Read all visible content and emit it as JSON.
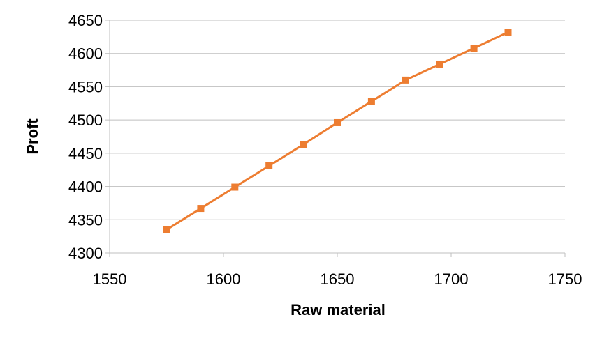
{
  "chart_data": {
    "type": "line",
    "title": "",
    "xlabel": "Raw material",
    "ylabel": "Proft",
    "xlim": [
      1550,
      1750
    ],
    "ylim": [
      4300,
      4650
    ],
    "xticks": [
      1550,
      1600,
      1650,
      1700,
      1750
    ],
    "yticks": [
      4300,
      4350,
      4400,
      4450,
      4500,
      4550,
      4600,
      4650
    ],
    "grid": "horizontal",
    "legend": "none",
    "series": [
      {
        "color": "#ED7D31",
        "marker": "square",
        "x": [
          1575,
          1590,
          1605,
          1620,
          1635,
          1650,
          1665,
          1680,
          1695,
          1710,
          1725
        ],
        "y": [
          4335,
          4367,
          4399,
          4431,
          4463,
          4496,
          4528,
          4560,
          4584,
          4608,
          4632
        ]
      }
    ]
  }
}
